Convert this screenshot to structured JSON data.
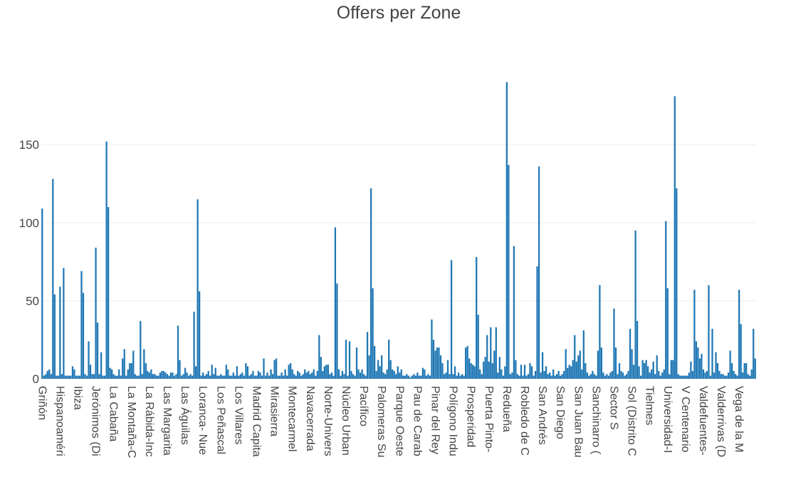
{
  "chart_data": {
    "type": "bar",
    "title": "Offers per Zone",
    "color": "#1f77b4",
    "grid": true,
    "ylim": [
      0,
      200
    ],
    "yticks": [
      0,
      50,
      100,
      150
    ],
    "categories": [
      "Griñón",
      null,
      null,
      null,
      null,
      null,
      null,
      null,
      null,
      null,
      "Hispanoaméri",
      null,
      null,
      null,
      null,
      null,
      null,
      null,
      null,
      null,
      "Ibiza",
      null,
      null,
      null,
      null,
      null,
      null,
      null,
      null,
      null,
      "Jerónimos (Di",
      null,
      null,
      null,
      null,
      null,
      null,
      null,
      null,
      null,
      "La Cabaña",
      null,
      null,
      null,
      null,
      null,
      null,
      null,
      null,
      null,
      "La Montaña-C",
      null,
      null,
      null,
      null,
      null,
      null,
      null,
      null,
      null,
      "La Rábida-Inc",
      null,
      null,
      null,
      null,
      null,
      null,
      null,
      null,
      null,
      "Las Margarita",
      null,
      null,
      null,
      null,
      null,
      null,
      null,
      null,
      null,
      "Las Águilas",
      null,
      null,
      null,
      null,
      null,
      null,
      null,
      null,
      null,
      "Loranca- Nue",
      null,
      null,
      null,
      null,
      null,
      null,
      null,
      null,
      null,
      "Los Peñascal",
      null,
      null,
      null,
      null,
      null,
      null,
      null,
      null,
      null,
      "Los Villares",
      null,
      null,
      null,
      null,
      null,
      null,
      null,
      null,
      null,
      "Madrid Capita",
      null,
      null,
      null,
      null,
      null,
      null,
      null,
      null,
      null,
      "Mirasierra",
      null,
      null,
      null,
      null,
      null,
      null,
      null,
      null,
      null,
      "Montecarmel",
      null,
      null,
      null,
      null,
      null,
      null,
      null,
      null,
      null,
      "Navacerrada",
      null,
      null,
      null,
      null,
      null,
      null,
      null,
      null,
      null,
      "Norte-Univers",
      null,
      null,
      null,
      null,
      null,
      null,
      null,
      null,
      null,
      "Núcleo Urban",
      null,
      null,
      null,
      null,
      null,
      null,
      null,
      null,
      null,
      "Pacífico",
      null,
      null,
      null,
      null,
      null,
      null,
      null,
      null,
      null,
      "Palomeras Su",
      null,
      null,
      null,
      null,
      null,
      null,
      null,
      null,
      null,
      "Parque Oeste",
      null,
      null,
      null,
      null,
      null,
      null,
      null,
      null,
      null,
      "Pau de Carab",
      null,
      null,
      null,
      null,
      null,
      null,
      null,
      null,
      null,
      "Pinar del Rey",
      null,
      null,
      null,
      null,
      null,
      null,
      null,
      null,
      null,
      "Polígono Indu",
      null,
      null,
      null,
      null,
      null,
      null,
      null,
      null,
      null,
      "Prosperidad",
      null,
      null,
      null,
      null,
      null,
      null,
      null,
      null,
      null,
      "Puerta Pinto-",
      null,
      null,
      null,
      null,
      null,
      null,
      null,
      null,
      null,
      "Redueña",
      null,
      null,
      null,
      null,
      null,
      null,
      null,
      null,
      null,
      "Robledo de C",
      null,
      null,
      null,
      null,
      null,
      null,
      null,
      null,
      null,
      "San Andrés",
      null,
      null,
      null,
      null,
      null,
      null,
      null,
      null,
      null,
      "San Diego",
      null,
      null,
      null,
      null,
      null,
      null,
      null,
      null,
      null,
      "San Juan Bau",
      null,
      null,
      null,
      null,
      null,
      null,
      null,
      null,
      null,
      "Sanchinarro (",
      null,
      null,
      null,
      null,
      null,
      null,
      null,
      null,
      null,
      "Sector S",
      null,
      null,
      null,
      null,
      null,
      null,
      null,
      null,
      null,
      "Sol (Distrito C",
      null,
      null,
      null,
      null,
      null,
      null,
      null,
      null,
      null,
      "Tielmes",
      null,
      null,
      null,
      null,
      null,
      null,
      null,
      null,
      null,
      "Universidad-I",
      null,
      null,
      null,
      null,
      null,
      null,
      null,
      null,
      null,
      "V Centenario",
      null,
      null,
      null,
      null,
      null,
      null,
      null,
      null,
      null,
      "Valdefuentes-",
      null,
      null,
      null,
      null,
      null,
      null,
      null,
      null,
      null,
      "Valderrivas (D",
      null,
      null,
      null,
      null,
      null,
      null,
      null,
      null,
      null,
      "Vega de la M",
      null,
      null,
      null,
      null,
      null,
      null,
      null,
      null,
      null
    ],
    "values": [
      109,
      2,
      3,
      5,
      6,
      3,
      128,
      54,
      2,
      2,
      59,
      3,
      71,
      2,
      2,
      2,
      2,
      8,
      6,
      2,
      2,
      2,
      69,
      55,
      3,
      2,
      24,
      9,
      3,
      3,
      84,
      36,
      3,
      17,
      2,
      2,
      152,
      110,
      7,
      6,
      3,
      2,
      2,
      6,
      2,
      13,
      19,
      2,
      6,
      10,
      10,
      18,
      3,
      2,
      2,
      37,
      3,
      19,
      10,
      5,
      4,
      6,
      3,
      3,
      2,
      2,
      4,
      5,
      5,
      4,
      3,
      2,
      4,
      4,
      2,
      3,
      34,
      12,
      2,
      3,
      7,
      4,
      2,
      3,
      2,
      43,
      8,
      115,
      56,
      2,
      4,
      2,
      3,
      5,
      2,
      9,
      3,
      7,
      2,
      2,
      3,
      2,
      2,
      9,
      6,
      2,
      2,
      4,
      2,
      8,
      2,
      3,
      4,
      2,
      10,
      8,
      2,
      3,
      5,
      2,
      2,
      5,
      4,
      2,
      13,
      2,
      4,
      2,
      6,
      3,
      12,
      13,
      2,
      2,
      4,
      2,
      6,
      2,
      9,
      10,
      6,
      3,
      2,
      5,
      4,
      2,
      3,
      6,
      4,
      5,
      3,
      4,
      6,
      2,
      5,
      28,
      14,
      5,
      8,
      9,
      9,
      3,
      4,
      2,
      97,
      61,
      6,
      2,
      5,
      3,
      25,
      2,
      24,
      5,
      3,
      2,
      20,
      6,
      4,
      6,
      3,
      2,
      30,
      15,
      122,
      58,
      21,
      5,
      12,
      8,
      15,
      4,
      3,
      6,
      25,
      12,
      6,
      5,
      3,
      8,
      4,
      6,
      2,
      2,
      3,
      2,
      1,
      2,
      3,
      2,
      4,
      2,
      2,
      7,
      6,
      2,
      3,
      2,
      38,
      25,
      18,
      20,
      20,
      15,
      10,
      3,
      4,
      12,
      3,
      76,
      3,
      8,
      2,
      4,
      2,
      3,
      2,
      20,
      21,
      13,
      10,
      9,
      8,
      78,
      41,
      6,
      3,
      11,
      14,
      28,
      11,
      33,
      10,
      18,
      33,
      4,
      14,
      6,
      2,
      8,
      190,
      137,
      3,
      4,
      85,
      12,
      3,
      2,
      9,
      2,
      9,
      2,
      3,
      10,
      8,
      2,
      5,
      72,
      136,
      4,
      17,
      5,
      8,
      3,
      4,
      2,
      6,
      2,
      3,
      5,
      2,
      3,
      5,
      19,
      7,
      9,
      8,
      12,
      28,
      11,
      15,
      18,
      6,
      31,
      10,
      4,
      2,
      3,
      5,
      3,
      2,
      18,
      60,
      20,
      4,
      2,
      3,
      2,
      4,
      5,
      45,
      20,
      3,
      10,
      5,
      4,
      2,
      3,
      5,
      32,
      19,
      9,
      95,
      37,
      8,
      2,
      12,
      10,
      12,
      8,
      4,
      6,
      11,
      3,
      15,
      5,
      2,
      4,
      6,
      101,
      58,
      3,
      12,
      12,
      181,
      122,
      3,
      2,
      2,
      2,
      2,
      2,
      4,
      11,
      5,
      57,
      24,
      20,
      13,
      16,
      6,
      4,
      5,
      60,
      2,
      32,
      4,
      17,
      10,
      5,
      3,
      3,
      2,
      2,
      4,
      18,
      10,
      5,
      3,
      2,
      57,
      35,
      4,
      10,
      10,
      3,
      2,
      6,
      32,
      13
    ]
  }
}
